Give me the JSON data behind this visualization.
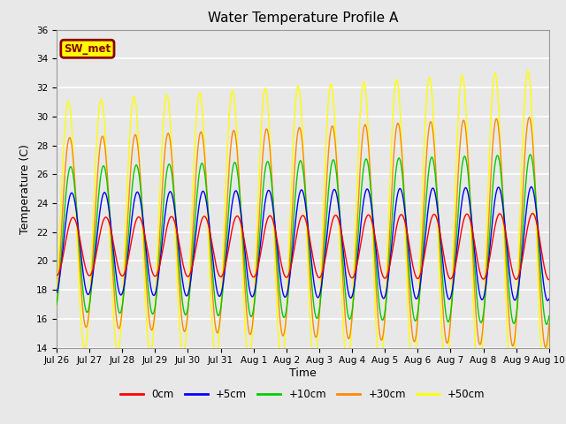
{
  "title": "Water Temperature Profile A",
  "xlabel": "Time",
  "ylabel": "Temperature (C)",
  "ylim": [
    14,
    36
  ],
  "yticks": [
    14,
    16,
    18,
    20,
    22,
    24,
    26,
    28,
    30,
    32,
    34,
    36
  ],
  "xtick_labels": [
    "Jul 26",
    "Jul 27",
    "Jul 28",
    "Jul 29",
    "Jul 30",
    "Jul 31",
    "Aug 1",
    "Aug 2",
    "Aug 3",
    "Aug 4",
    "Aug 5",
    "Aug 6",
    "Aug 7",
    "Aug 8",
    "Aug 9",
    "Aug 10"
  ],
  "annotation_text": "SW_met",
  "annotation_bg": "#ffff00",
  "annotation_fg": "#8b0000",
  "lines": [
    {
      "label": "0cm",
      "color": "#ff0000",
      "amp_base": 2.0,
      "mean": 21.0,
      "phase": 0.0,
      "amp_growth": 0.02
    },
    {
      "label": "+5cm",
      "color": "#0000ff",
      "amp_base": 3.5,
      "mean": 21.2,
      "phase": 0.25,
      "amp_growth": 0.03
    },
    {
      "label": "+10cm",
      "color": "#00cc00",
      "amp_base": 5.0,
      "mean": 21.5,
      "phase": 0.45,
      "amp_growth": 0.06
    },
    {
      "label": "+30cm",
      "color": "#ff8800",
      "amp_base": 6.5,
      "mean": 22.0,
      "phase": 0.65,
      "amp_growth": 0.1
    },
    {
      "label": "+50cm",
      "color": "#ffff00",
      "amp_base": 8.5,
      "mean": 22.5,
      "phase": 0.9,
      "amp_growth": 0.15
    }
  ],
  "bg_color": "#e8e8e8",
  "plot_bg_color": "#e8e8e8",
  "grid_color": "#ffffff",
  "n_points": 720,
  "days": 15,
  "cycles_per_day": 1
}
